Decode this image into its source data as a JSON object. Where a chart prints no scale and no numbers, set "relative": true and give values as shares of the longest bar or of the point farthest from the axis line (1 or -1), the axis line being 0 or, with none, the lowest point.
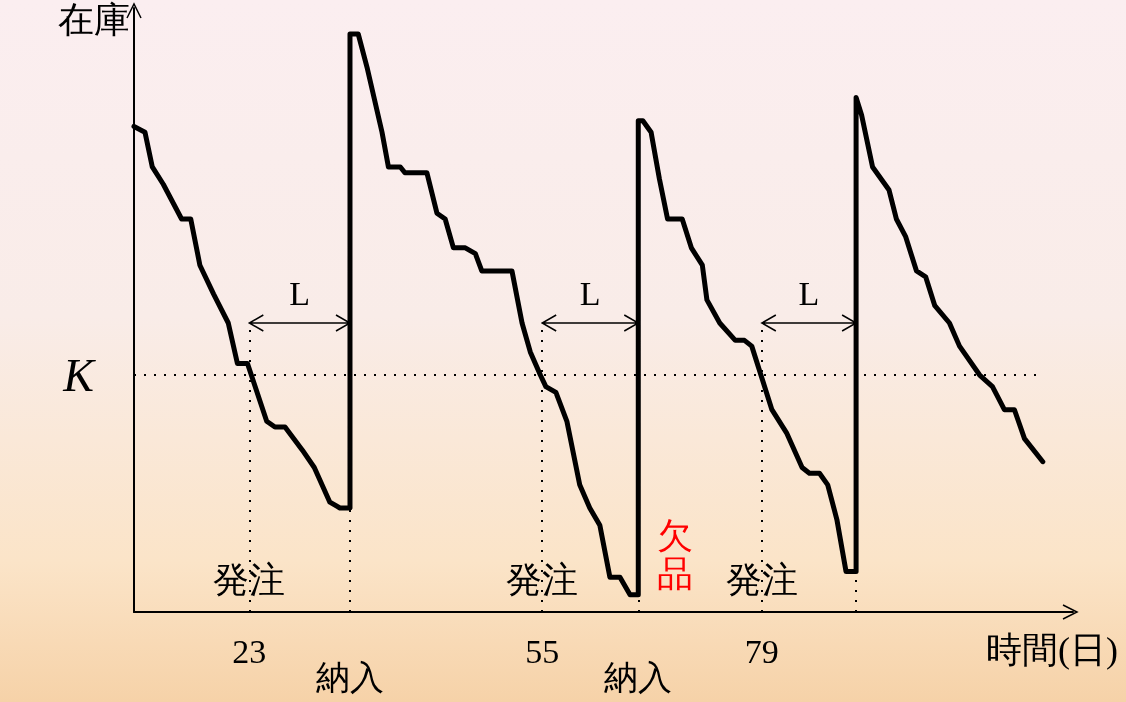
{
  "chart_data": {
    "type": "line",
    "relative": true,
    "xlabel": "時間(日)",
    "ylabel": "在庫",
    "xlim": [
      10.4,
      113
    ],
    "xticks": [
      23,
      55,
      79
    ],
    "grid": false,
    "marker": "none",
    "line_style": "solid",
    "series": [
      {
        "color": "#000000",
        "x": [
          10.4,
          11.6,
          12.4,
          13.6,
          15.6,
          16.6,
          17.6,
          19.1,
          20.7,
          21.7,
          22.8,
          24.9,
          25.8,
          26.9,
          28.8,
          30.1,
          31.8,
          32.9,
          34.0,
          34.0,
          34.9,
          35.9,
          37.5,
          38.2,
          39.5,
          40.0,
          42.4,
          43.5,
          44.4,
          45.3,
          46.6,
          47.7,
          48.4,
          50.4,
          51.7,
          52.8,
          53.7,
          54.8,
          55.4,
          56.5,
          57.7,
          59.1,
          60.2,
          61.3,
          62.4,
          63.5,
          64.6,
          65.5,
          65.5,
          66.0,
          66.9,
          67.8,
          68.7,
          70.3,
          71.3,
          72.5,
          73.0,
          74.4,
          76.1,
          77.1,
          77.9,
          79.1,
          80.1,
          81.7,
          83.4,
          84.2,
          85.3,
          86.2,
          87.2,
          88.2,
          89.3,
          89.3,
          89.9,
          91.1,
          92.9,
          93.7,
          94.7,
          95.9,
          96.9,
          97.9,
          99.5,
          100.6,
          102.8,
          104.2,
          105.5,
          106.6,
          107.7,
          109.7
        ],
        "values": [
          0.84,
          0.83,
          0.77,
          0.74,
          0.68,
          0.68,
          0.6,
          0.55,
          0.5,
          0.43,
          0.43,
          0.33,
          0.32,
          0.32,
          0.28,
          0.25,
          0.19,
          0.18,
          0.18,
          1.0,
          1.0,
          0.94,
          0.83,
          0.77,
          0.77,
          0.76,
          0.76,
          0.69,
          0.68,
          0.63,
          0.63,
          0.62,
          0.59,
          0.59,
          0.59,
          0.5,
          0.45,
          0.41,
          0.39,
          0.38,
          0.33,
          0.22,
          0.18,
          0.15,
          0.06,
          0.06,
          0.03,
          0.03,
          0.85,
          0.85,
          0.83,
          0.75,
          0.68,
          0.68,
          0.63,
          0.6,
          0.54,
          0.5,
          0.47,
          0.47,
          0.46,
          0.4,
          0.35,
          0.31,
          0.25,
          0.24,
          0.24,
          0.22,
          0.16,
          0.07,
          0.07,
          0.89,
          0.86,
          0.77,
          0.73,
          0.68,
          0.65,
          0.59,
          0.58,
          0.53,
          0.5,
          0.46,
          0.41,
          0.39,
          0.35,
          0.35,
          0.3,
          0.26
        ]
      }
    ],
    "ref_lines": [
      {
        "axis": "y",
        "value": 0.41,
        "label": "K",
        "line_style": "dotted",
        "color": "#000000"
      },
      {
        "axis": "x",
        "value": 23,
        "line_style": "dotted",
        "color": "#000000"
      },
      {
        "axis": "x",
        "value": 34.0,
        "label": "納入",
        "line_style": "dotted",
        "color": "#000000"
      },
      {
        "axis": "x",
        "value": 55,
        "line_style": "dotted",
        "color": "#000000"
      },
      {
        "axis": "x",
        "value": 65.5,
        "label": "納入",
        "line_style": "dotted",
        "color": "#000000"
      },
      {
        "axis": "x",
        "value": 79,
        "line_style": "dotted",
        "color": "#000000"
      },
      {
        "axis": "x",
        "value": 89.3,
        "line_style": "dotted",
        "color": "#000000"
      }
    ],
    "annotations": [
      "L",
      "L",
      "L",
      {
        "text": "発注",
        "x": 23,
        "y": 0.055
      },
      {
        "text": "発注",
        "x": 55,
        "y": 0.055
      },
      {
        "text": "発注",
        "x": 79,
        "y": 0.055
      },
      "欠品"
    ]
  }
}
